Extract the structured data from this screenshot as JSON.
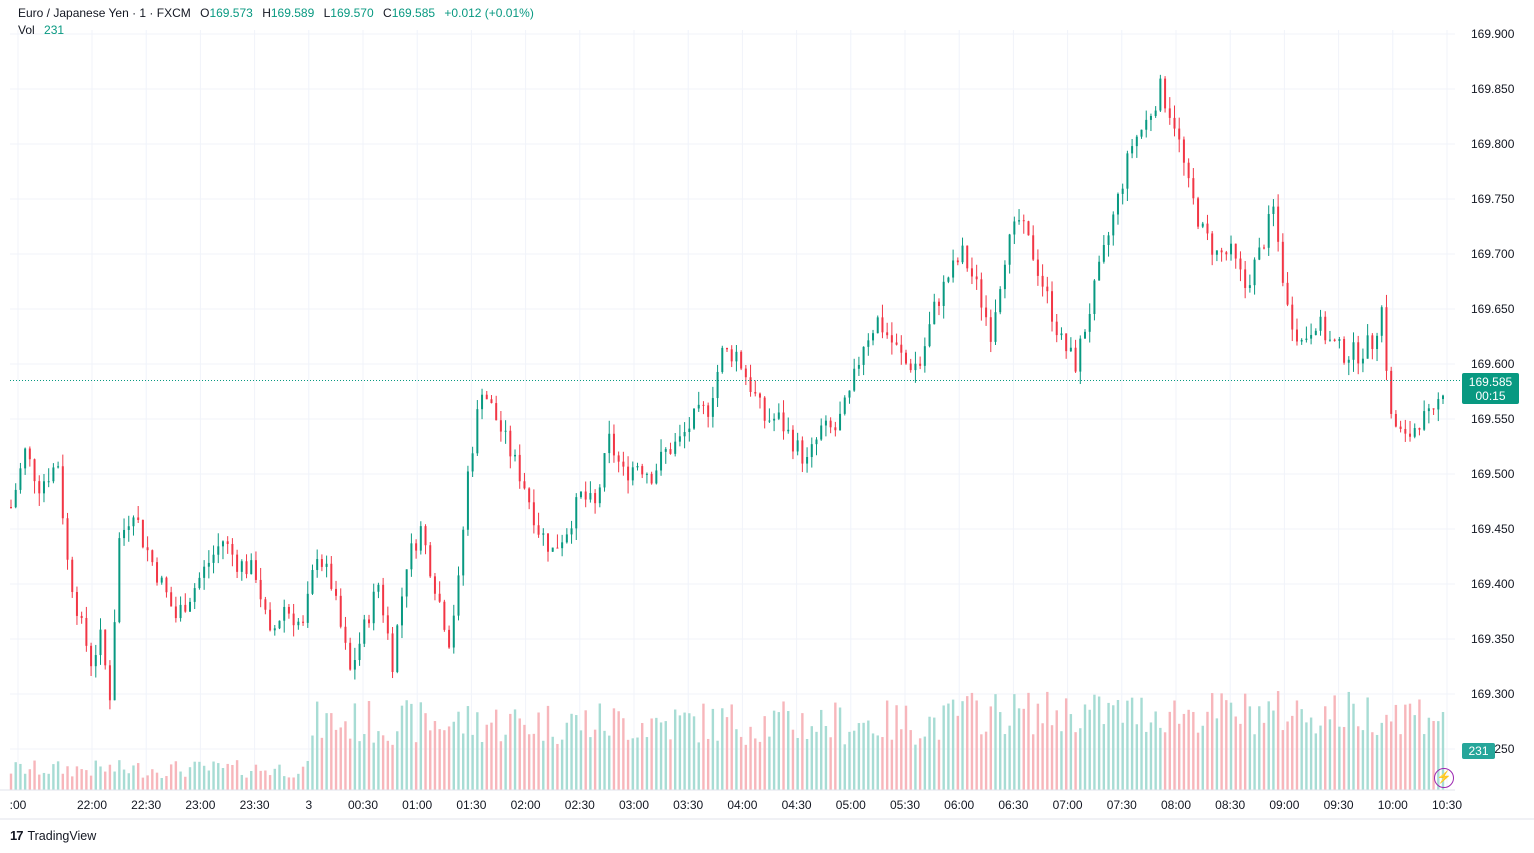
{
  "legend": {
    "symbol": "Euro / Japanese Yen · 1 · FXCM",
    "open_label": "O",
    "open": "169.573",
    "high_label": "H",
    "high": "169.589",
    "low_label": "L",
    "low": "169.570",
    "close_label": "C",
    "close": "169.585",
    "change": "+0.012 (+0.01%)",
    "vol_label": "Vol",
    "vol": "231"
  },
  "price_tag": {
    "price": "169.585",
    "countdown": "00:15"
  },
  "vol_tag": "231",
  "branding": {
    "logo": "17",
    "name": "TradingView"
  },
  "colors": {
    "up": "#089981",
    "down": "#f23645",
    "vol_up": "#a7dcd4",
    "vol_down": "#f7b6bb",
    "grid": "#f0f3fa"
  },
  "chart_data": {
    "type": "candlestick",
    "y_axis": {
      "ticks": [
        "169.900",
        "169.850",
        "169.800",
        "169.750",
        "169.700",
        "169.650",
        "169.600",
        "169.550",
        "169.500",
        "169.450",
        "169.400",
        "169.350",
        "169.300",
        "169.250"
      ],
      "range": [
        169.21,
        169.925
      ]
    },
    "x_axis": {
      "ticks": [
        ":00",
        "22:00",
        "22:30",
        "23:00",
        "23:30",
        "3",
        "00:30",
        "01:00",
        "01:30",
        "02:00",
        "02:30",
        "03:00",
        "03:30",
        "04:00",
        "04:30",
        "05:00",
        "05:30",
        "06:00",
        "06:30",
        "07:00",
        "07:30",
        "08:00",
        "08:30",
        "09:00",
        "09:30",
        "10:00",
        "10:30"
      ]
    },
    "current_price": 169.585,
    "close_path": [
      [
        0,
        169.47
      ],
      [
        3,
        169.52
      ],
      [
        6,
        169.49
      ],
      [
        10,
        169.51
      ],
      [
        12,
        169.42
      ],
      [
        15,
        169.36
      ],
      [
        17,
        169.33
      ],
      [
        19,
        169.35
      ],
      [
        21,
        169.3
      ],
      [
        23,
        169.44
      ],
      [
        26,
        169.47
      ],
      [
        28,
        169.44
      ],
      [
        32,
        169.4
      ],
      [
        35,
        169.37
      ],
      [
        38,
        169.39
      ],
      [
        42,
        169.42
      ],
      [
        45,
        169.44
      ],
      [
        48,
        169.42
      ],
      [
        52,
        169.41
      ],
      [
        55,
        169.35
      ],
      [
        58,
        169.38
      ],
      [
        62,
        169.36
      ],
      [
        65,
        169.43
      ],
      [
        68,
        169.4
      ],
      [
        72,
        169.32
      ],
      [
        75,
        169.36
      ],
      [
        78,
        169.4
      ],
      [
        81,
        169.33
      ],
      [
        84,
        169.42
      ],
      [
        87,
        169.45
      ],
      [
        90,
        169.4
      ],
      [
        93,
        169.35
      ],
      [
        95,
        169.4
      ],
      [
        97,
        169.5
      ],
      [
        100,
        169.58
      ],
      [
        103,
        169.55
      ],
      [
        106,
        169.52
      ],
      [
        109,
        169.49
      ],
      [
        112,
        169.45
      ],
      [
        115,
        169.43
      ],
      [
        118,
        169.45
      ],
      [
        121,
        169.48
      ],
      [
        124,
        169.47
      ],
      [
        127,
        169.53
      ],
      [
        130,
        169.5
      ],
      [
        133,
        169.51
      ],
      [
        136,
        169.5
      ],
      [
        139,
        169.52
      ],
      [
        142,
        169.53
      ],
      [
        145,
        169.55
      ],
      [
        148,
        169.56
      ],
      [
        151,
        169.61
      ],
      [
        154,
        169.61
      ],
      [
        157,
        169.58
      ],
      [
        160,
        169.55
      ],
      [
        163,
        169.55
      ],
      [
        166,
        169.53
      ],
      [
        169,
        169.51
      ],
      [
        172,
        169.54
      ],
      [
        175,
        169.54
      ],
      [
        178,
        169.57
      ],
      [
        181,
        169.62
      ],
      [
        184,
        169.64
      ],
      [
        187,
        169.62
      ],
      [
        190,
        169.6
      ],
      [
        193,
        169.6
      ],
      [
        196,
        169.65
      ],
      [
        199,
        169.68
      ],
      [
        202,
        169.7
      ],
      [
        205,
        169.67
      ],
      [
        208,
        169.63
      ],
      [
        211,
        169.7
      ],
      [
        214,
        169.73
      ],
      [
        217,
        169.7
      ],
      [
        220,
        169.66
      ],
      [
        223,
        169.62
      ],
      [
        226,
        169.6
      ],
      [
        229,
        169.65
      ],
      [
        232,
        169.7
      ],
      [
        235,
        169.75
      ],
      [
        238,
        169.8
      ],
      [
        241,
        169.82
      ],
      [
        244,
        169.85
      ],
      [
        247,
        169.82
      ],
      [
        250,
        169.76
      ],
      [
        253,
        169.72
      ],
      [
        256,
        169.7
      ],
      [
        259,
        169.7
      ],
      [
        262,
        169.67
      ],
      [
        265,
        169.7
      ],
      [
        268,
        169.74
      ],
      [
        271,
        169.65
      ],
      [
        274,
        169.62
      ],
      [
        277,
        169.64
      ],
      [
        280,
        169.62
      ],
      [
        283,
        169.61
      ],
      [
        286,
        169.61
      ],
      [
        289,
        169.62
      ],
      [
        291,
        169.65
      ],
      [
        293,
        169.55
      ],
      [
        296,
        169.53
      ],
      [
        299,
        169.55
      ],
      [
        302,
        169.55
      ],
      [
        304,
        169.58
      ]
    ]
  }
}
